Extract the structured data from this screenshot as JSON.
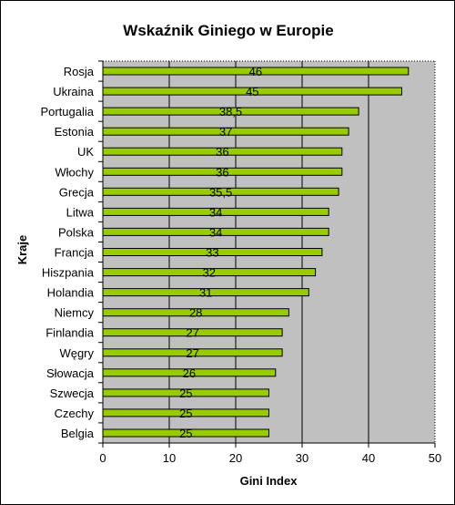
{
  "chart_data": {
    "type": "bar",
    "orientation": "horizontal",
    "title": "Wskaźnik Giniego w Europie",
    "xlabel": "Gini Index",
    "ylabel": "Kraje",
    "xlim": [
      0,
      50
    ],
    "x_ticks": [
      0,
      10,
      20,
      30,
      40,
      50
    ],
    "grid": true,
    "legend": "none",
    "colors": {
      "bar": "#99cc00",
      "plot_background": "#c0c0c0",
      "gridline": "#000000"
    },
    "categories": [
      "Rosja",
      "Ukraina",
      "Portugalia",
      "Estonia",
      "UK",
      "Włochy",
      "Grecja",
      "Litwa",
      "Polska",
      "Francja",
      "Hiszpania",
      "Holandia",
      "Niemcy",
      "Finlandia",
      "Węgry",
      "Słowacja",
      "Szwecja",
      "Czechy",
      "Belgia"
    ],
    "values": [
      46,
      45,
      38.5,
      37,
      36,
      36,
      35.5,
      34,
      34,
      33,
      32,
      31,
      28,
      27,
      27,
      26,
      25,
      25,
      25
    ],
    "data_labels": [
      "46",
      "45",
      "38,5",
      "37",
      "36",
      "36",
      "35,5",
      "34",
      "34",
      "33",
      "32",
      "31",
      "28",
      "27",
      "27",
      "26",
      "25",
      "25",
      "25"
    ]
  }
}
